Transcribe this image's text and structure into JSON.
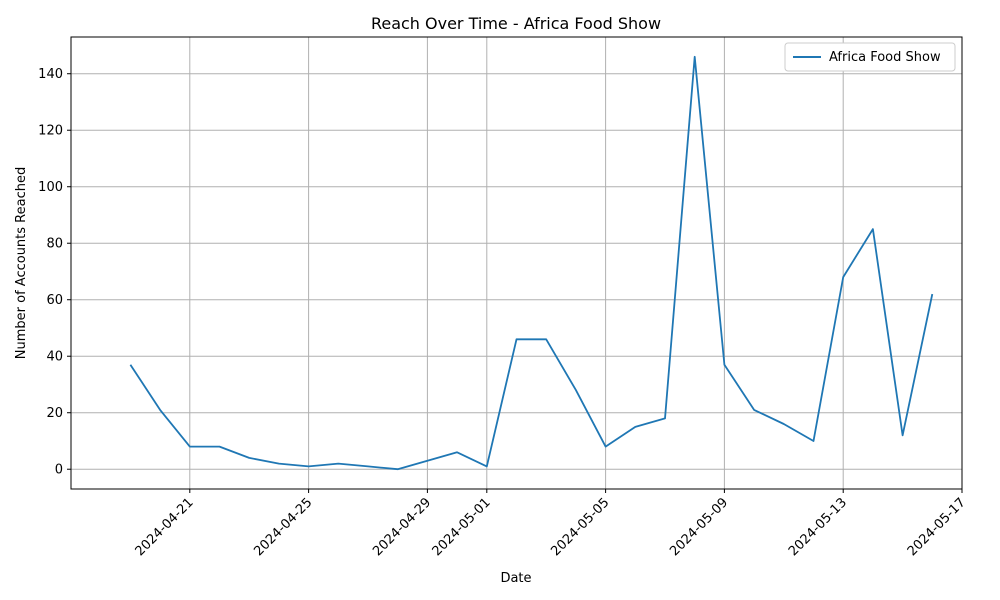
{
  "chart_data": {
    "type": "line",
    "title": "Reach Over Time - Africa Food Show",
    "xlabel": "Date",
    "ylabel": "Number of Accounts Reached",
    "grid": true,
    "legend_position": "top-right",
    "xlim": [
      "2024-04-17",
      "2024-05-17"
    ],
    "ylim": [
      -7,
      153
    ],
    "x_ticks": [
      "2024-04-21",
      "2024-04-25",
      "2024-04-29",
      "2024-05-01",
      "2024-05-05",
      "2024-05-09",
      "2024-05-13",
      "2024-05-17"
    ],
    "y_ticks": [
      0,
      20,
      40,
      60,
      80,
      100,
      120,
      140
    ],
    "series": [
      {
        "name": "Africa Food Show",
        "color": "#1f77b4",
        "x": [
          "2024-04-19",
          "2024-04-20",
          "2024-04-21",
          "2024-04-22",
          "2024-04-23",
          "2024-04-24",
          "2024-04-25",
          "2024-04-26",
          "2024-04-27",
          "2024-04-28",
          "2024-04-29",
          "2024-04-30",
          "2024-05-01",
          "2024-05-02",
          "2024-05-03",
          "2024-05-04",
          "2024-05-05",
          "2024-05-06",
          "2024-05-07",
          "2024-05-08",
          "2024-05-09",
          "2024-05-10",
          "2024-05-11",
          "2024-05-12",
          "2024-05-13",
          "2024-05-14",
          "2024-05-15",
          "2024-05-16"
        ],
        "values": [
          37,
          21,
          8,
          8,
          4,
          2,
          1,
          2,
          1,
          0,
          3,
          6,
          1,
          46,
          46,
          28,
          8,
          15,
          18,
          146,
          37,
          21,
          16,
          10,
          68,
          85,
          12,
          62
        ]
      }
    ]
  }
}
